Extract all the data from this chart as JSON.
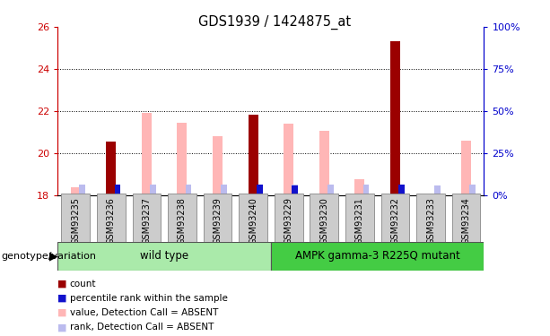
{
  "title": "GDS1939 / 1424875_at",
  "samples": [
    "GSM93235",
    "GSM93236",
    "GSM93237",
    "GSM93238",
    "GSM93239",
    "GSM93240",
    "GSM93229",
    "GSM93230",
    "GSM93231",
    "GSM93232",
    "GSM93233",
    "GSM93234"
  ],
  "ymin": 18,
  "ymax": 26,
  "yticks": [
    18,
    20,
    22,
    24,
    26
  ],
  "right_ytick_positions": [
    18,
    19.5,
    21,
    22.5,
    24
  ],
  "right_ytick_labels": [
    "0%",
    "25%",
    "50%",
    "75%",
    "100%"
  ],
  "base": 18,
  "red_color": "#9B0000",
  "pink_color": "#FFB6B6",
  "blue_color": "#1111CC",
  "light_blue_color": "#BBBBEE",
  "count_values": [
    0.0,
    2.55,
    0.0,
    0.0,
    0.0,
    3.8,
    0.0,
    0.0,
    0.0,
    7.3,
    0.0,
    0.0
  ],
  "pink_values": [
    0.35,
    2.55,
    3.9,
    3.45,
    2.8,
    3.8,
    3.4,
    3.05,
    0.75,
    7.3,
    0.0,
    2.6
  ],
  "blue_values": [
    0.0,
    0.48,
    0.0,
    0.0,
    0.0,
    0.48,
    0.44,
    0.0,
    0.0,
    0.48,
    0.0,
    0.0
  ],
  "light_blue_values": [
    0.48,
    0.48,
    0.48,
    0.48,
    0.48,
    0.48,
    0.48,
    0.48,
    0.48,
    0.48,
    0.44,
    0.48
  ],
  "label_red": "count",
  "label_blue": "percentile rank within the sample",
  "label_pink": "value, Detection Call = ABSENT",
  "label_light_blue": "rank, Detection Call = ABSENT",
  "group_color_wild": "#AAEAAA",
  "group_color_mutant": "#44CC44",
  "left_axis_color": "#CC0000",
  "right_axis_color": "#0000CC",
  "xticklabel_bg": "#CCCCCC"
}
